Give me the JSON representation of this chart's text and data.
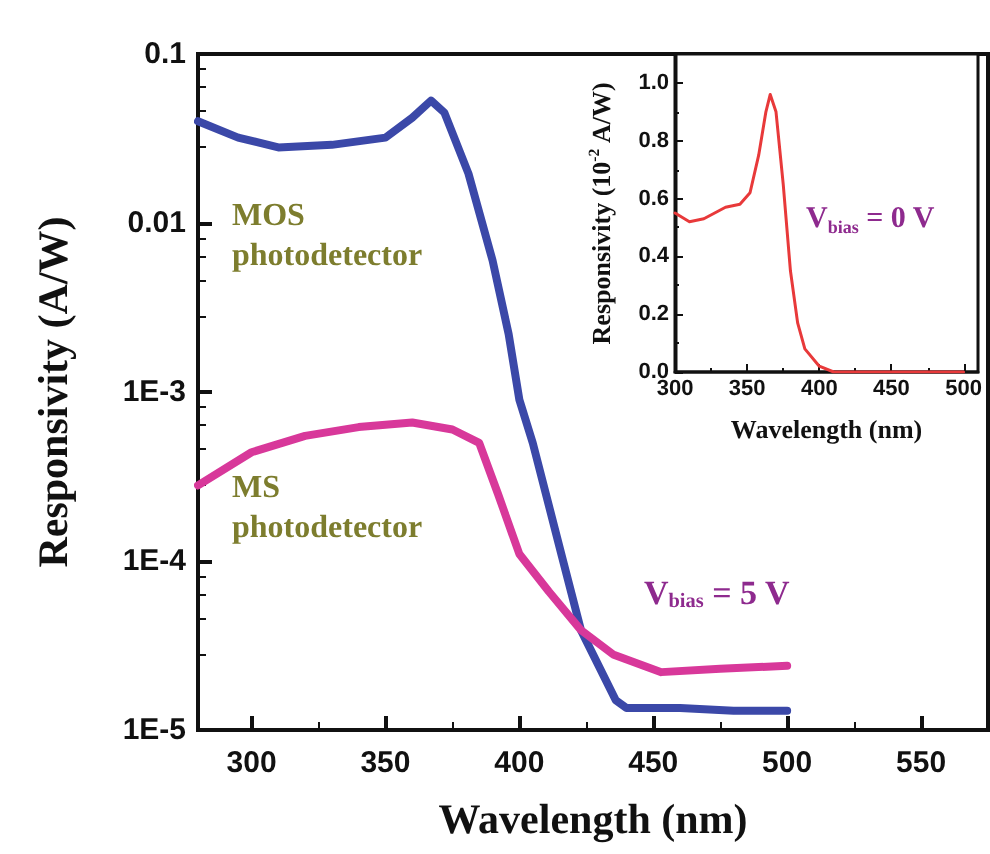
{
  "chart_data": [
    {
      "type": "line",
      "xlabel": "Wavelength (nm)",
      "ylabel": "Responsivity (A/W)",
      "log": "y",
      "xlim": [
        280,
        575
      ],
      "xticks": [
        300,
        350,
        400,
        450,
        500,
        550
      ],
      "ylim": [
        1e-05,
        0.1
      ],
      "yticks": [
        {
          "value": 0.1,
          "label": "0.1"
        },
        {
          "value": 0.01,
          "label": "0.01"
        },
        {
          "value": 0.001,
          "label": "1E-3"
        },
        {
          "value": 0.0001,
          "label": "1E-4"
        },
        {
          "value": 1e-05,
          "label": "1E-5"
        }
      ],
      "grid": false,
      "legend": false,
      "marker": "none",
      "line_style": "solid",
      "annotations": [
        "V$_{bias}$ = 5 V"
      ],
      "series": [
        {
          "name": "MOS photodetector",
          "color": "#3b48a8",
          "x": [
            280,
            295,
            310,
            330,
            350,
            360,
            367,
            372,
            381,
            390,
            396,
            400,
            405,
            416,
            423,
            436,
            440,
            460,
            480,
            500
          ],
          "values": [
            0.04,
            0.032,
            0.028,
            0.029,
            0.032,
            0.042,
            0.053,
            0.045,
            0.0196,
            0.006,
            0.0022,
            0.0009,
            0.0005,
            0.000105,
            3.9e-05,
            1.5e-05,
            1.35e-05,
            1.35e-05,
            1.3e-05,
            1.3e-05
          ]
        },
        {
          "name": "MS photodetector",
          "color": "#d8389a",
          "x": [
            280,
            300,
            320,
            340,
            360,
            375,
            385,
            392,
            400,
            411,
            423,
            435,
            453,
            475,
            500
          ],
          "values": [
            0.00028,
            0.00044,
            0.00055,
            0.00062,
            0.00066,
            0.0006,
            0.0005,
            0.00025,
            0.00011,
            6.6e-05,
            3.9e-05,
            2.8e-05,
            2.2e-05,
            2.3e-05,
            2.4e-05
          ]
        }
      ]
    },
    {
      "type": "line",
      "xlabel": "Wavelength (nm)",
      "ylabel": "Responsivity (10$^{-2}$ A/W)",
      "xlim": [
        300,
        510
      ],
      "xticks": [
        300,
        350,
        400,
        450,
        500
      ],
      "ylim": [
        0,
        1.1
      ],
      "yticks": [
        {
          "value": 0,
          "label": "0.0"
        },
        {
          "value": 0.2,
          "label": "0.2"
        },
        {
          "value": 0.4,
          "label": "0.4"
        },
        {
          "value": 0.6,
          "label": "0.6"
        },
        {
          "value": 0.8,
          "label": "0.8"
        },
        {
          "value": 1,
          "label": "1.0"
        }
      ],
      "grid": false,
      "legend": false,
      "marker": "none",
      "line_style": "solid",
      "annotations": [
        "V$_{bias}$ = 0 V"
      ],
      "series": [
        {
          "color": "#e8393a",
          "x": [
            300,
            310,
            320,
            335,
            345,
            352,
            358,
            363,
            366,
            370,
            375,
            380,
            385,
            390,
            400,
            410,
            450,
            500
          ],
          "values": [
            0.55,
            0.52,
            0.53,
            0.57,
            0.58,
            0.62,
            0.75,
            0.9,
            0.96,
            0.9,
            0.65,
            0.35,
            0.17,
            0.08,
            0.02,
            0,
            0,
            0
          ]
        }
      ]
    }
  ]
}
